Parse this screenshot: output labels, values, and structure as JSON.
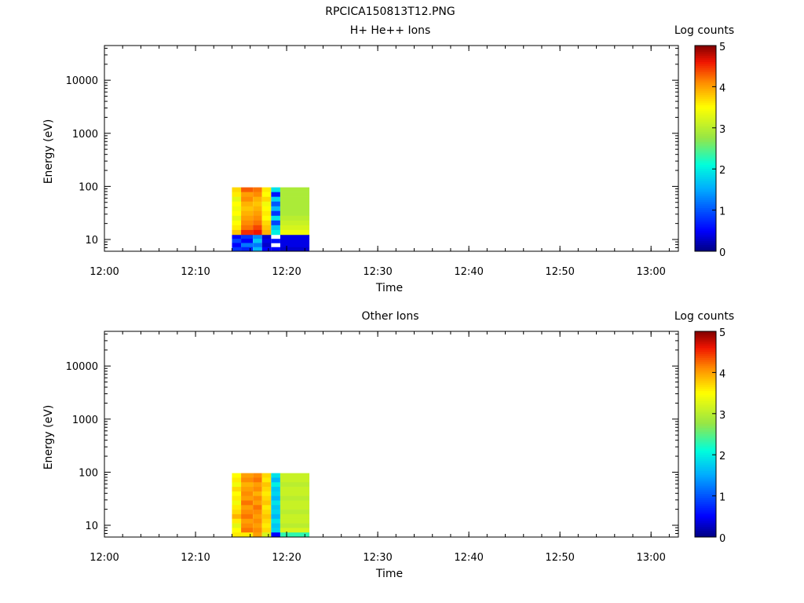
{
  "figure_title": "RPCICA150813T12.PNG",
  "chart_data": [
    {
      "type": "heatmap",
      "title": "H+ He++ Ions",
      "xlabel": "Time",
      "ylabel": "Energy (eV)",
      "y_scale": "log",
      "ylim": [
        6,
        45000
      ],
      "xlim": [
        "12:00",
        "13:03"
      ],
      "x_ticks": [
        "12:00",
        "12:10",
        "12:20",
        "12:30",
        "12:40",
        "12:50",
        "13:00"
      ],
      "y_ticks": [
        "10",
        "100",
        "1000",
        "10000"
      ],
      "colorbar": {
        "label": "Log counts",
        "range": [
          0,
          5
        ],
        "ticks": [
          "0",
          "1",
          "2",
          "3",
          "4",
          "5"
        ]
      },
      "columns": [
        {
          "t0": "12:14",
          "t1": "12:15",
          "low_values": [
            0.5,
            0.9,
            0.5,
            0.8
          ],
          "high_values": [
            3.7,
            3.6,
            3.3,
            3.5,
            3.4,
            3.5,
            3.3,
            3.5,
            3.6,
            3.8
          ]
        },
        {
          "t0": "12:15",
          "t1": "12:16.3",
          "low_values": [
            0.8,
            0.5,
            1.2,
            0.7
          ],
          "high_values": [
            4.3,
            4.0,
            4.1,
            3.9,
            3.8,
            3.9,
            4.0,
            4.1,
            4.2,
            4.5
          ]
        },
        {
          "t0": "12:16.3",
          "t1": "12:17.3",
          "low_values": [
            1.3,
            1.7,
            1.2,
            1.6
          ],
          "high_values": [
            4.2,
            4.1,
            3.9,
            3.8,
            3.9,
            4.0,
            4.1,
            4.2,
            4.4,
            4.6
          ]
        },
        {
          "t0": "12:17.3",
          "t1": "12:18.3",
          "low_values": [
            0.3,
            0.4,
            0.3,
            0.5
          ],
          "high_values": [
            3.6,
            3.5,
            3.7,
            3.4,
            3.5,
            3.6,
            3.5,
            3.7,
            3.8,
            3.9
          ]
        },
        {
          "t0": "12:18.3",
          "t1": "12:19.3",
          "low_values": [
            null,
            0.6,
            null,
            0.5
          ],
          "high_values": [
            1.9,
            0.6,
            1.8,
            1.0,
            1.6,
            0.8,
            1.9,
            0.9,
            1.7,
            2.0
          ]
        },
        {
          "t0": "12:19.3",
          "t1": "12:22.5",
          "low_values": [
            0.4,
            0.4,
            0.4,
            0.3
          ],
          "high_values": [
            2.9,
            2.9,
            2.9,
            2.9,
            2.9,
            2.9,
            3.0,
            3.1,
            3.2,
            3.4
          ]
        }
      ]
    },
    {
      "type": "heatmap",
      "title": "Other Ions",
      "xlabel": "Time",
      "ylabel": "Energy (eV)",
      "y_scale": "log",
      "ylim": [
        6,
        45000
      ],
      "xlim": [
        "12:00",
        "13:03"
      ],
      "x_ticks": [
        "12:00",
        "12:10",
        "12:20",
        "12:30",
        "12:40",
        "12:50",
        "13:00"
      ],
      "y_ticks": [
        "10",
        "100",
        "1000",
        "10000"
      ],
      "colorbar": {
        "label": "Log counts",
        "range": [
          0,
          5
        ],
        "ticks": [
          "0",
          "1",
          "2",
          "3",
          "4",
          "5"
        ]
      },
      "columns": [
        {
          "t0": "12:14",
          "t1": "12:15",
          "low_values": [],
          "high_values": [
            3.5,
            3.6,
            3.4,
            3.7,
            3.5,
            3.6,
            3.4,
            3.6,
            3.7,
            3.9,
            3.6,
            3.3,
            3.5,
            3.6
          ]
        },
        {
          "t0": "12:15",
          "t1": "12:16.3",
          "low_values": [],
          "high_values": [
            4.0,
            4.1,
            3.9,
            4.0,
            4.1,
            4.0,
            4.2,
            4.0,
            4.1,
            4.2,
            4.0,
            4.1,
            4.2,
            3.6
          ]
        },
        {
          "t0": "12:16.3",
          "t1": "12:17.3",
          "low_values": [],
          "high_values": [
            4.1,
            4.2,
            4.0,
            4.1,
            3.9,
            4.1,
            4.0,
            4.2,
            4.1,
            4.0,
            4.1,
            4.0,
            4.1,
            4.0
          ]
        },
        {
          "t0": "12:17.3",
          "t1": "12:18.3",
          "low_values": [],
          "high_values": [
            3.7,
            3.6,
            3.8,
            3.7,
            3.6,
            3.7,
            3.8,
            3.6,
            3.7,
            3.8,
            3.7,
            3.6,
            3.7,
            3.2
          ]
        },
        {
          "t0": "12:18.3",
          "t1": "12:19.3",
          "low_values": [],
          "high_values": [
            1.9,
            1.6,
            2.0,
            1.7,
            1.8,
            1.6,
            1.9,
            1.7,
            1.8,
            1.6,
            1.9,
            1.7,
            1.8,
            0.5
          ]
        },
        {
          "t0": "12:19.3",
          "t1": "12:22.5",
          "low_values": [],
          "high_values": [
            3.1,
            3.1,
            3.0,
            3.1,
            3.1,
            3.0,
            3.1,
            3.1,
            3.0,
            3.1,
            3.1,
            3.0,
            3.2,
            2.3
          ]
        }
      ]
    }
  ]
}
